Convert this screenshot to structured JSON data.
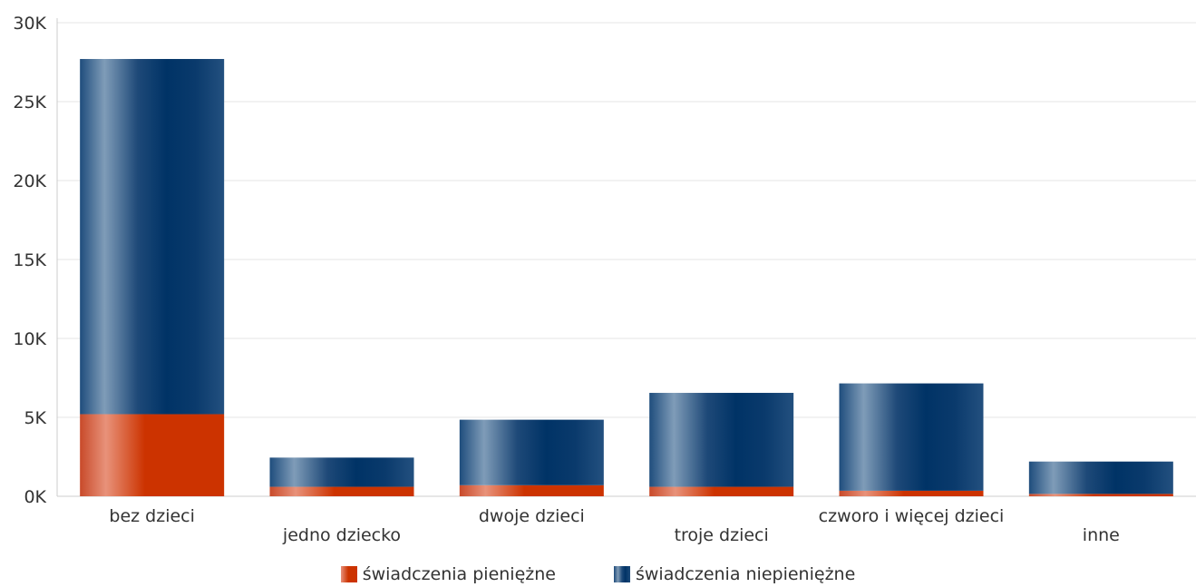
{
  "chart_data": {
    "type": "bar",
    "stacked": true,
    "categories": [
      "bez dzieci",
      "jedno dziecko",
      "dwoje dzieci",
      "troje dzieci",
      "czworo i więcej dzieci",
      "inne"
    ],
    "series": [
      {
        "name": "świadczenia pieniężne",
        "color": "#cc3300",
        "values": [
          5200,
          600,
          700,
          600,
          350,
          150
        ]
      },
      {
        "name": "świadczenia niepieniężne",
        "color": "#003366",
        "values": [
          22500,
          1850,
          4150,
          5950,
          6800,
          2050
        ]
      }
    ],
    "yticks": [
      "0K",
      "5K",
      "10K",
      "15K",
      "20K",
      "25K",
      "30K"
    ],
    "ylim": [
      0,
      30000
    ],
    "grid": true,
    "legend_position": "bottom-center"
  }
}
